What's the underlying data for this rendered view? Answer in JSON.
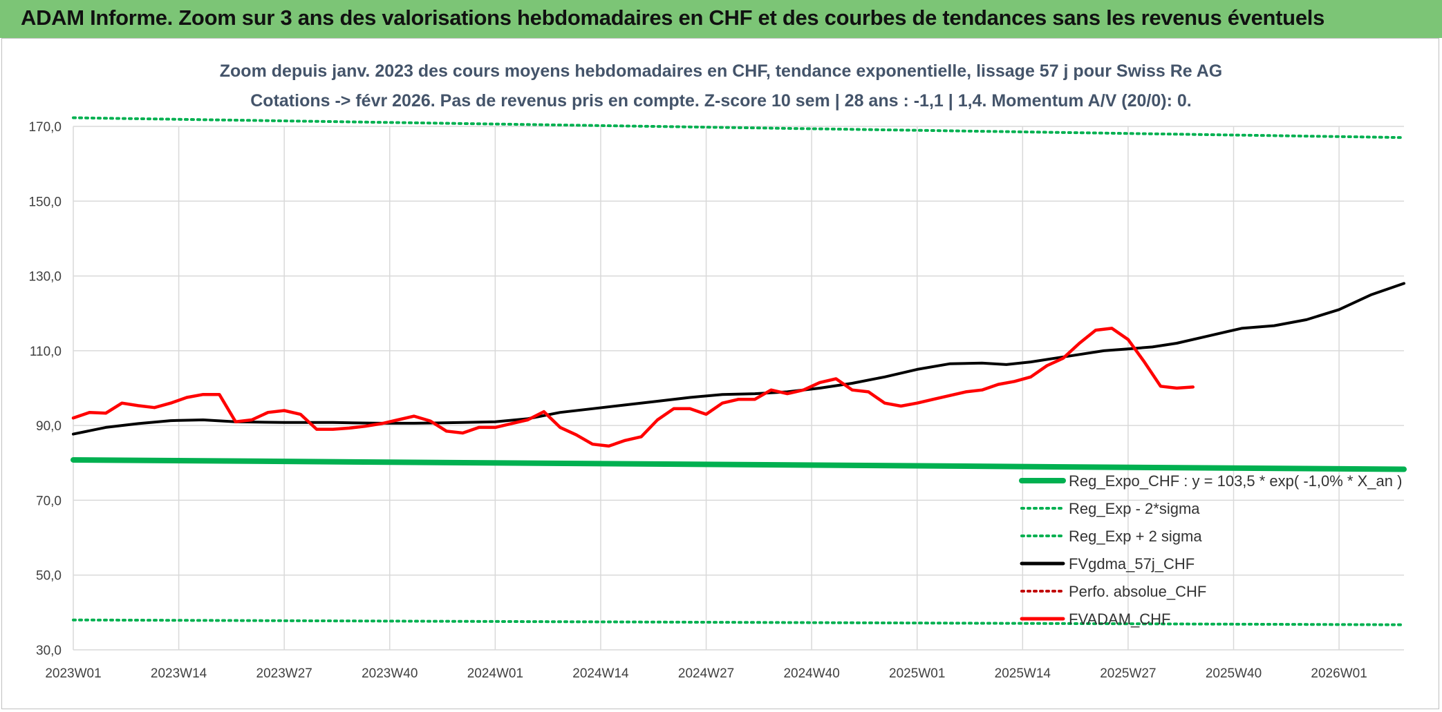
{
  "header": {
    "title": "ADAM Informe. Zoom sur 3 ans des valorisations hebdomadaires en CHF et des courbes de tendances sans les revenus éventuels"
  },
  "chart_data": {
    "type": "line",
    "title": "Zoom depuis janv. 2023 des cours moyens hebdomadaires en CHF, tendance exponentielle, lissage 57 j pour Swiss Re AG",
    "subtitle": "Cotations -> févr 2026. Pas de revenus pris en compte. Z-score 10 sem | 28 ans : -1,1 | 1,4. Momentum A/V (20/0): 0.",
    "ylim": [
      30,
      170
    ],
    "yticks": [
      "30,0",
      "50,0",
      "70,0",
      "90,0",
      "110,0",
      "130,0",
      "150,0",
      "170,0"
    ],
    "xlabels": [
      "2023W01",
      "2023W14",
      "2023W27",
      "2023W40",
      "2024W01",
      "2024W14",
      "2024W27",
      "2024W40",
      "2025W01",
      "2025W14",
      "2025W27",
      "2025W40",
      "2026W01"
    ],
    "x_index_range": [
      0,
      164
    ],
    "grid": true,
    "legend_position": "bottom-right",
    "series": [
      {
        "name": "Reg_Expo_CHF : y = 103,5 * exp( -1,0% *  X_an )",
        "color": "#00b050",
        "style": "solid-thick",
        "points": [
          [
            0,
            80.8
          ],
          [
            164,
            78.3
          ]
        ]
      },
      {
        "name": "Reg_Exp - 2*sigma",
        "color": "#00b050",
        "style": "dotted",
        "points": [
          [
            0,
            38.0
          ],
          [
            164,
            36.7
          ]
        ]
      },
      {
        "name": "Reg_Exp + 2 sigma",
        "color": "#00b050",
        "style": "dotted",
        "points": [
          [
            0,
            172.3
          ],
          [
            164,
            167.0
          ]
        ]
      },
      {
        "name": "FVgdma_57j_CHF",
        "color": "#000000",
        "style": "solid",
        "points": [
          [
            0,
            87.7
          ],
          [
            4,
            89.5
          ],
          [
            8,
            90.5
          ],
          [
            12,
            91.3
          ],
          [
            16,
            91.5
          ],
          [
            20,
            91.0
          ],
          [
            26,
            90.8
          ],
          [
            32,
            90.8
          ],
          [
            38,
            90.6
          ],
          [
            42,
            90.6
          ],
          [
            48,
            90.8
          ],
          [
            52,
            91.0
          ],
          [
            56,
            91.8
          ],
          [
            60,
            93.5
          ],
          [
            64,
            94.5
          ],
          [
            68,
            95.5
          ],
          [
            72,
            96.5
          ],
          [
            76,
            97.5
          ],
          [
            80,
            98.3
          ],
          [
            84,
            98.5
          ],
          [
            88,
            99.0
          ],
          [
            92,
            100.0
          ],
          [
            96,
            101.3
          ],
          [
            100,
            103.0
          ],
          [
            104,
            105.0
          ],
          [
            108,
            106.5
          ],
          [
            112,
            106.7
          ],
          [
            115,
            106.3
          ],
          [
            118,
            107.0
          ],
          [
            121,
            108.0
          ],
          [
            124,
            109.0
          ],
          [
            127,
            110.0
          ],
          [
            130,
            110.5
          ],
          [
            133,
            111.0
          ],
          [
            136,
            112.0
          ],
          [
            140,
            114.0
          ],
          [
            144,
            116.0
          ],
          [
            148,
            116.7
          ],
          [
            152,
            118.3
          ],
          [
            156,
            121.0
          ],
          [
            160,
            125.0
          ],
          [
            164,
            128.0
          ]
        ]
      },
      {
        "name": "Perfo. absolue_CHF",
        "color": "#c00000",
        "style": "dotted",
        "points": []
      },
      {
        "name": "FVADAM_CHF",
        "color": "#ff0000",
        "style": "solid-thick",
        "points": [
          [
            0,
            92.0
          ],
          [
            2,
            93.5
          ],
          [
            4,
            93.3
          ],
          [
            6,
            96.0
          ],
          [
            8,
            95.3
          ],
          [
            10,
            94.8
          ],
          [
            12,
            96.0
          ],
          [
            14,
            97.5
          ],
          [
            16,
            98.3
          ],
          [
            18,
            98.3
          ],
          [
            20,
            91.0
          ],
          [
            22,
            91.5
          ],
          [
            24,
            93.5
          ],
          [
            26,
            94.0
          ],
          [
            28,
            93.0
          ],
          [
            30,
            89.0
          ],
          [
            32,
            89.0
          ],
          [
            34,
            89.3
          ],
          [
            36,
            89.8
          ],
          [
            38,
            90.5
          ],
          [
            40,
            91.5
          ],
          [
            42,
            92.5
          ],
          [
            44,
            91.2
          ],
          [
            46,
            88.5
          ],
          [
            48,
            88.0
          ],
          [
            50,
            89.5
          ],
          [
            52,
            89.5
          ],
          [
            54,
            90.5
          ],
          [
            56,
            91.5
          ],
          [
            58,
            93.7
          ],
          [
            60,
            89.5
          ],
          [
            62,
            87.5
          ],
          [
            64,
            85.0
          ],
          [
            66,
            84.5
          ],
          [
            68,
            86.0
          ],
          [
            70,
            87.0
          ],
          [
            72,
            91.5
          ],
          [
            74,
            94.5
          ],
          [
            76,
            94.5
          ],
          [
            78,
            93.0
          ],
          [
            80,
            96.0
          ],
          [
            82,
            97.0
          ],
          [
            84,
            97.0
          ],
          [
            86,
            99.5
          ],
          [
            88,
            98.5
          ],
          [
            90,
            99.5
          ],
          [
            92,
            101.5
          ],
          [
            94,
            102.5
          ],
          [
            96,
            99.5
          ],
          [
            98,
            99.0
          ],
          [
            100,
            96.0
          ],
          [
            102,
            95.2
          ],
          [
            104,
            96.0
          ],
          [
            106,
            97.0
          ],
          [
            108,
            98.0
          ],
          [
            110,
            99.0
          ],
          [
            112,
            99.5
          ],
          [
            114,
            101.0
          ],
          [
            116,
            101.8
          ],
          [
            118,
            103.0
          ],
          [
            120,
            106.0
          ],
          [
            122,
            108.0
          ],
          [
            124,
            112.0
          ],
          [
            126,
            115.5
          ],
          [
            128,
            116.0
          ],
          [
            130,
            113.0
          ],
          [
            132,
            107.0
          ],
          [
            134,
            100.5
          ],
          [
            136,
            100.0
          ],
          [
            138,
            100.3
          ]
        ]
      }
    ]
  },
  "legend": {
    "items": [
      {
        "label": "Reg_Expo_CHF : y = 103,5 * exp( -1,0% *  X_an )"
      },
      {
        "label": "Reg_Exp - 2*sigma"
      },
      {
        "label": "Reg_Exp + 2 sigma"
      },
      {
        "label": "FVgdma_57j_CHF"
      },
      {
        "label": "Perfo. absolue_CHF"
      },
      {
        "label": "FVADAM_CHF"
      }
    ]
  }
}
